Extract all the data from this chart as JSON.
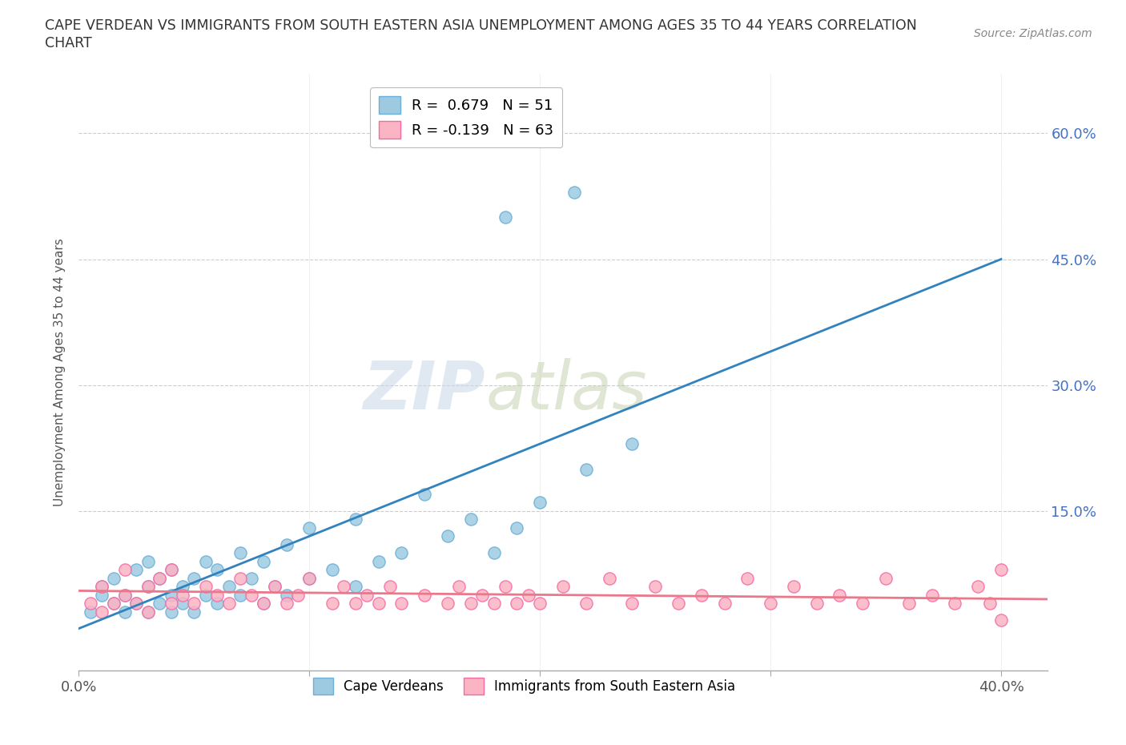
{
  "title_line1": "CAPE VERDEAN VS IMMIGRANTS FROM SOUTH EASTERN ASIA UNEMPLOYMENT AMONG AGES 35 TO 44 YEARS CORRELATION",
  "title_line2": "CHART",
  "source_text": "Source: ZipAtlas.com",
  "ylabel": "Unemployment Among Ages 35 to 44 years",
  "xlim": [
    0.0,
    0.42
  ],
  "ylim": [
    -0.04,
    0.67
  ],
  "yticks": [
    0.0,
    0.15,
    0.3,
    0.45,
    0.6
  ],
  "ytick_labels": [
    "",
    "15.0%",
    "30.0%",
    "45.0%",
    "60.0%"
  ],
  "xticks": [
    0.0,
    0.1,
    0.2,
    0.3,
    0.4
  ],
  "xtick_labels": [
    "0.0%",
    "",
    "",
    "",
    "40.0%"
  ],
  "legend_blue_label": "R =  0.679   N = 51",
  "legend_pink_label": "R = -0.139   N = 63",
  "blue_color": "#9ecae1",
  "pink_color": "#fbb4c4",
  "blue_edge_color": "#6baed6",
  "pink_edge_color": "#f768a1",
  "blue_line_color": "#3182bd",
  "pink_line_color": "#e8788a",
  "watermark_zip": "ZIP",
  "watermark_atlas": "atlas",
  "blue_scatter_x": [
    0.005,
    0.01,
    0.01,
    0.015,
    0.015,
    0.02,
    0.02,
    0.025,
    0.025,
    0.03,
    0.03,
    0.03,
    0.035,
    0.035,
    0.04,
    0.04,
    0.04,
    0.045,
    0.045,
    0.05,
    0.05,
    0.055,
    0.055,
    0.06,
    0.06,
    0.065,
    0.07,
    0.07,
    0.075,
    0.08,
    0.08,
    0.085,
    0.09,
    0.09,
    0.1,
    0.1,
    0.11,
    0.12,
    0.12,
    0.13,
    0.14,
    0.15,
    0.16,
    0.17,
    0.18,
    0.19,
    0.2,
    0.22,
    0.24,
    0.185,
    0.215
  ],
  "blue_scatter_y": [
    0.03,
    0.05,
    0.06,
    0.04,
    0.07,
    0.03,
    0.05,
    0.04,
    0.08,
    0.03,
    0.06,
    0.09,
    0.04,
    0.07,
    0.03,
    0.05,
    0.08,
    0.04,
    0.06,
    0.03,
    0.07,
    0.05,
    0.09,
    0.04,
    0.08,
    0.06,
    0.05,
    0.1,
    0.07,
    0.04,
    0.09,
    0.06,
    0.05,
    0.11,
    0.07,
    0.13,
    0.08,
    0.06,
    0.14,
    0.09,
    0.1,
    0.17,
    0.12,
    0.14,
    0.1,
    0.13,
    0.16,
    0.2,
    0.23,
    0.5,
    0.53
  ],
  "pink_scatter_x": [
    0.005,
    0.01,
    0.01,
    0.015,
    0.02,
    0.02,
    0.025,
    0.03,
    0.03,
    0.035,
    0.04,
    0.04,
    0.045,
    0.05,
    0.055,
    0.06,
    0.065,
    0.07,
    0.075,
    0.08,
    0.085,
    0.09,
    0.095,
    0.1,
    0.11,
    0.115,
    0.12,
    0.125,
    0.13,
    0.135,
    0.14,
    0.15,
    0.16,
    0.165,
    0.17,
    0.175,
    0.18,
    0.185,
    0.19,
    0.195,
    0.2,
    0.21,
    0.22,
    0.23,
    0.24,
    0.25,
    0.26,
    0.27,
    0.28,
    0.29,
    0.3,
    0.31,
    0.32,
    0.33,
    0.34,
    0.35,
    0.36,
    0.37,
    0.38,
    0.39,
    0.395,
    0.4,
    0.4
  ],
  "pink_scatter_y": [
    0.04,
    0.03,
    0.06,
    0.04,
    0.05,
    0.08,
    0.04,
    0.06,
    0.03,
    0.07,
    0.04,
    0.08,
    0.05,
    0.04,
    0.06,
    0.05,
    0.04,
    0.07,
    0.05,
    0.04,
    0.06,
    0.04,
    0.05,
    0.07,
    0.04,
    0.06,
    0.04,
    0.05,
    0.04,
    0.06,
    0.04,
    0.05,
    0.04,
    0.06,
    0.04,
    0.05,
    0.04,
    0.06,
    0.04,
    0.05,
    0.04,
    0.06,
    0.04,
    0.07,
    0.04,
    0.06,
    0.04,
    0.05,
    0.04,
    0.07,
    0.04,
    0.06,
    0.04,
    0.05,
    0.04,
    0.07,
    0.04,
    0.05,
    0.04,
    0.06,
    0.04,
    0.08,
    0.02
  ],
  "blue_trend_x": [
    0.0,
    0.4
  ],
  "blue_trend_y": [
    0.01,
    0.45
  ],
  "pink_trend_x": [
    0.0,
    0.42
  ],
  "pink_trend_y": [
    0.055,
    0.045
  ],
  "background_color": "#ffffff",
  "grid_color": "#cccccc",
  "legend_bottom_blue": "Cape Verdeans",
  "legend_bottom_pink": "Immigrants from South Eastern Asia"
}
